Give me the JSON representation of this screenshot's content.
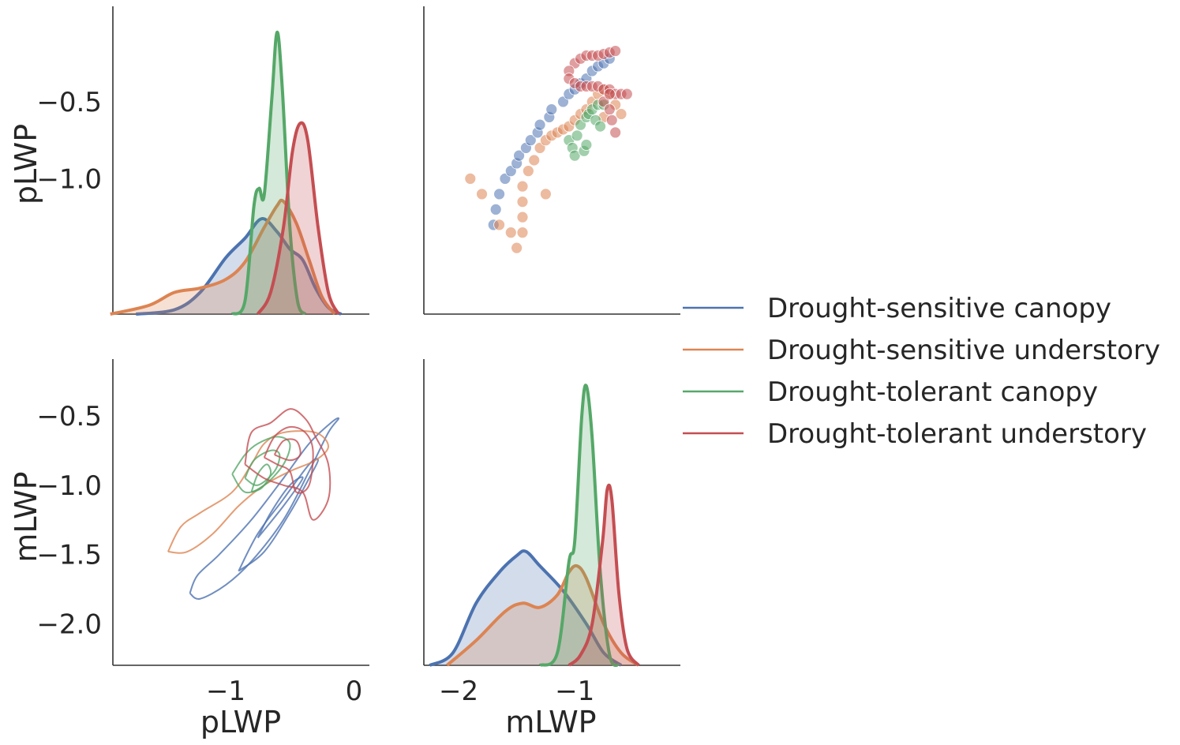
{
  "chart_data": {
    "type": "pairplot",
    "variables": [
      "pLWP",
      "mLWP"
    ],
    "axis_labels": {
      "row0_ylabel": "pLWP",
      "row1_ylabel": "mLWP",
      "col0_xlabel": "pLWP",
      "col1_xlabel": "mLWP"
    },
    "limits": {
      "pLWP": [
        -1.88,
        0.12
      ],
      "mLWP": [
        -2.3,
        -0.09
      ]
    },
    "ticks": {
      "pLWP_y": [
        {
          "v": -0.5,
          "t": "−0.5"
        },
        {
          "v": -1.0,
          "t": "−1.0"
        }
      ],
      "mLWP_y": [
        {
          "v": -0.5,
          "t": "−0.5"
        },
        {
          "v": -1.0,
          "t": "−1.0"
        },
        {
          "v": -1.5,
          "t": "−1.5"
        },
        {
          "v": -2.0,
          "t": "−2.0"
        }
      ],
      "pLWP_x": [
        {
          "v": -1,
          "t": "−1"
        },
        {
          "v": 0,
          "t": "0"
        }
      ],
      "mLWP_x": [
        {
          "v": -2,
          "t": "−2"
        },
        {
          "v": -1,
          "t": "−1"
        }
      ]
    },
    "legend_placement": "center-right",
    "series": [
      {
        "name": "Drought-sensitive canopy",
        "color": "#4c72b0",
        "pLWP_kde": [
          [
            -1.7,
            0.0
          ],
          [
            -1.4,
            0.02
          ],
          [
            -1.2,
            0.1
          ],
          [
            -1.0,
            0.26
          ],
          [
            -0.85,
            0.35
          ],
          [
            -0.72,
            0.44
          ],
          [
            -0.6,
            0.38
          ],
          [
            -0.5,
            0.3
          ],
          [
            -0.4,
            0.25
          ],
          [
            -0.3,
            0.12
          ],
          [
            -0.2,
            0.03
          ],
          [
            -0.1,
            0.0
          ]
        ],
        "mLWP_kde": [
          [
            -2.25,
            0.0
          ],
          [
            -2.05,
            0.06
          ],
          [
            -1.85,
            0.3
          ],
          [
            -1.65,
            0.45
          ],
          [
            -1.5,
            0.53
          ],
          [
            -1.42,
            0.55
          ],
          [
            -1.3,
            0.48
          ],
          [
            -1.1,
            0.36
          ],
          [
            -0.9,
            0.2
          ],
          [
            -0.75,
            0.06
          ],
          [
            -0.6,
            0.0
          ]
        ],
        "scatter": [
          [
            -1.7,
            -1.3
          ],
          [
            -1.68,
            -1.2
          ],
          [
            -1.65,
            -1.1
          ],
          [
            -1.6,
            -1.0
          ],
          [
            -1.55,
            -0.95
          ],
          [
            -1.5,
            -0.9
          ],
          [
            -1.48,
            -0.85
          ],
          [
            -1.42,
            -0.8
          ],
          [
            -1.38,
            -0.75
          ],
          [
            -1.32,
            -0.7
          ],
          [
            -1.3,
            -0.65
          ],
          [
            -1.22,
            -0.6
          ],
          [
            -1.2,
            -0.55
          ],
          [
            -1.1,
            -0.5
          ],
          [
            -1.05,
            -0.45
          ],
          [
            -1.0,
            -0.42
          ],
          [
            -0.95,
            -0.38
          ],
          [
            -0.9,
            -0.35
          ],
          [
            -0.85,
            -0.3
          ],
          [
            -0.8,
            -0.27
          ],
          [
            -0.75,
            -0.25
          ],
          [
            -0.7,
            -0.22
          ]
        ]
      },
      {
        "name": "Drought-sensitive understory",
        "color": "#dd8452",
        "pLWP_kde": [
          [
            -1.9,
            0.0
          ],
          [
            -1.6,
            0.04
          ],
          [
            -1.4,
            0.1
          ],
          [
            -1.2,
            0.12
          ],
          [
            -1.0,
            0.16
          ],
          [
            -0.85,
            0.24
          ],
          [
            -0.7,
            0.4
          ],
          [
            -0.6,
            0.5
          ],
          [
            -0.55,
            0.52
          ],
          [
            -0.45,
            0.42
          ],
          [
            -0.35,
            0.25
          ],
          [
            -0.25,
            0.08
          ],
          [
            -0.15,
            0.0
          ]
        ],
        "mLWP_kde": [
          [
            -2.1,
            0.0
          ],
          [
            -1.85,
            0.12
          ],
          [
            -1.6,
            0.26
          ],
          [
            -1.45,
            0.3
          ],
          [
            -1.3,
            0.28
          ],
          [
            -1.15,
            0.34
          ],
          [
            -1.05,
            0.45
          ],
          [
            -0.98,
            0.48
          ],
          [
            -0.9,
            0.42
          ],
          [
            -0.75,
            0.2
          ],
          [
            -0.6,
            0.06
          ],
          [
            -0.45,
            0.0
          ]
        ],
        "scatter": [
          [
            -1.9,
            -1.0
          ],
          [
            -1.8,
            -1.1
          ],
          [
            -1.65,
            -1.3
          ],
          [
            -1.55,
            -1.35
          ],
          [
            -1.5,
            -1.45
          ],
          [
            -1.45,
            -1.35
          ],
          [
            -1.45,
            -1.25
          ],
          [
            -1.45,
            -1.15
          ],
          [
            -1.45,
            -1.05
          ],
          [
            -1.4,
            -0.95
          ],
          [
            -1.35,
            -0.88
          ],
          [
            -1.3,
            -0.8
          ],
          [
            -1.25,
            -0.75
          ],
          [
            -1.2,
            -0.72
          ],
          [
            -1.15,
            -0.7
          ],
          [
            -1.1,
            -0.68
          ],
          [
            -1.05,
            -0.66
          ],
          [
            -1.0,
            -0.62
          ],
          [
            -0.95,
            -0.58
          ],
          [
            -0.9,
            -0.55
          ],
          [
            -0.85,
            -0.5
          ],
          [
            -0.8,
            -0.45
          ],
          [
            -0.75,
            -0.42
          ],
          [
            -0.7,
            -0.45
          ],
          [
            -0.65,
            -0.52
          ],
          [
            -0.6,
            -0.58
          ],
          [
            -1.25,
            -1.1
          ],
          [
            -0.75,
            -0.6
          ]
        ]
      },
      {
        "name": "Drought-tolerant canopy",
        "color": "#55a868",
        "pLWP_kde": [
          [
            -0.95,
            0.0
          ],
          [
            -0.85,
            0.06
          ],
          [
            -0.78,
            0.5
          ],
          [
            -0.74,
            0.58
          ],
          [
            -0.7,
            0.55
          ],
          [
            -0.64,
            1.0
          ],
          [
            -0.6,
            1.3
          ],
          [
            -0.56,
            1.05
          ],
          [
            -0.5,
            0.4
          ],
          [
            -0.44,
            0.06
          ],
          [
            -0.38,
            0.0
          ]
        ],
        "mLWP_kde": [
          [
            -1.3,
            0.0
          ],
          [
            -1.15,
            0.06
          ],
          [
            -1.05,
            0.5
          ],
          [
            -1.0,
            0.6
          ],
          [
            -0.94,
            1.2
          ],
          [
            -0.9,
            1.35
          ],
          [
            -0.85,
            1.1
          ],
          [
            -0.78,
            0.45
          ],
          [
            -0.7,
            0.05
          ],
          [
            -0.62,
            0.0
          ]
        ],
        "scatter": [
          [
            -1.05,
            -0.75
          ],
          [
            -1.02,
            -0.8
          ],
          [
            -1.0,
            -0.85
          ],
          [
            -0.98,
            -0.72
          ],
          [
            -0.95,
            -0.65
          ],
          [
            -0.9,
            -0.6
          ],
          [
            -0.88,
            -0.58
          ],
          [
            -0.85,
            -0.55
          ],
          [
            -0.8,
            -0.52
          ],
          [
            -0.75,
            -0.52
          ],
          [
            -0.82,
            -0.62
          ],
          [
            -0.78,
            -0.66
          ],
          [
            -0.92,
            -0.82
          ],
          [
            -0.9,
            -0.78
          ]
        ]
      },
      {
        "name": "Drought-tolerant understory",
        "color": "#c44e52",
        "pLWP_kde": [
          [
            -0.75,
            0.0
          ],
          [
            -0.65,
            0.1
          ],
          [
            -0.55,
            0.4
          ],
          [
            -0.48,
            0.75
          ],
          [
            -0.42,
            0.88
          ],
          [
            -0.36,
            0.8
          ],
          [
            -0.28,
            0.4
          ],
          [
            -0.2,
            0.1
          ],
          [
            -0.12,
            0.0
          ]
        ],
        "mLWP_kde": [
          [
            -1.05,
            0.0
          ],
          [
            -0.95,
            0.05
          ],
          [
            -0.85,
            0.2
          ],
          [
            -0.76,
            0.6
          ],
          [
            -0.72,
            0.85
          ],
          [
            -0.68,
            0.8
          ],
          [
            -0.62,
            0.35
          ],
          [
            -0.55,
            0.08
          ],
          [
            -0.45,
            0.0
          ]
        ],
        "scatter": [
          [
            -1.0,
            -0.25
          ],
          [
            -0.95,
            -0.22
          ],
          [
            -0.9,
            -0.2
          ],
          [
            -0.85,
            -0.2
          ],
          [
            -0.8,
            -0.2
          ],
          [
            -0.75,
            -0.19
          ],
          [
            -0.7,
            -0.18
          ],
          [
            -0.65,
            -0.17
          ],
          [
            -1.05,
            -0.3
          ],
          [
            -1.05,
            -0.35
          ],
          [
            -1.0,
            -0.38
          ],
          [
            -0.95,
            -0.4
          ],
          [
            -0.9,
            -0.4
          ],
          [
            -0.85,
            -0.4
          ],
          [
            -0.8,
            -0.4
          ],
          [
            -0.75,
            -0.42
          ],
          [
            -0.7,
            -0.42
          ],
          [
            -0.65,
            -0.45
          ],
          [
            -0.6,
            -0.45
          ],
          [
            -0.55,
            -0.45
          ],
          [
            -0.75,
            -0.5
          ],
          [
            -0.7,
            -0.55
          ],
          [
            -0.68,
            -0.62
          ],
          [
            -0.65,
            -0.7
          ],
          [
            -0.7,
            -0.45
          ]
        ]
      }
    ],
    "kde2d_contours": [
      {
        "series": 0,
        "paths": [
          [
            [
              -1.28,
              -1.78
            ],
            [
              -1.2,
              -1.82
            ],
            [
              -1.0,
              -1.72
            ],
            [
              -0.8,
              -1.55
            ],
            [
              -0.55,
              -1.25
            ],
            [
              -0.35,
              -0.9
            ],
            [
              -0.2,
              -0.62
            ],
            [
              -0.12,
              -0.52
            ],
            [
              -0.18,
              -0.55
            ],
            [
              -0.35,
              -0.7
            ],
            [
              -0.55,
              -0.95
            ],
            [
              -0.8,
              -1.25
            ],
            [
              -1.05,
              -1.5
            ],
            [
              -1.22,
              -1.65
            ],
            [
              -1.28,
              -1.78
            ]
          ],
          [
            [
              -0.9,
              -1.62
            ],
            [
              -0.7,
              -1.48
            ],
            [
              -0.5,
              -1.2
            ],
            [
              -0.35,
              -0.95
            ],
            [
              -0.28,
              -0.82
            ],
            [
              -0.35,
              -0.85
            ],
            [
              -0.55,
              -1.1
            ],
            [
              -0.75,
              -1.35
            ],
            [
              -0.9,
              -1.62
            ]
          ],
          [
            [
              -0.75,
              -1.38
            ],
            [
              -0.55,
              -1.15
            ],
            [
              -0.4,
              -0.95
            ],
            [
              -0.5,
              -1.0
            ],
            [
              -0.65,
              -1.2
            ],
            [
              -0.75,
              -1.38
            ]
          ]
        ]
      },
      {
        "series": 1,
        "paths": [
          [
            [
              -1.45,
              -1.48
            ],
            [
              -1.35,
              -1.3
            ],
            [
              -1.2,
              -1.2
            ],
            [
              -0.95,
              -1.05
            ],
            [
              -0.8,
              -0.85
            ],
            [
              -0.7,
              -0.7
            ],
            [
              -0.55,
              -0.62
            ],
            [
              -0.3,
              -0.62
            ],
            [
              -0.2,
              -0.72
            ],
            [
              -0.3,
              -0.82
            ],
            [
              -0.5,
              -0.9
            ],
            [
              -0.7,
              -1.0
            ],
            [
              -0.9,
              -1.15
            ],
            [
              -1.1,
              -1.35
            ],
            [
              -1.3,
              -1.48
            ],
            [
              -1.45,
              -1.48
            ]
          ]
        ]
      },
      {
        "series": 2,
        "paths": [
          [
            [
              -0.95,
              -0.92
            ],
            [
              -0.85,
              -0.78
            ],
            [
              -0.75,
              -0.7
            ],
            [
              -0.6,
              -0.65
            ],
            [
              -0.5,
              -0.7
            ],
            [
              -0.55,
              -0.85
            ],
            [
              -0.7,
              -1.0
            ],
            [
              -0.85,
              -1.05
            ],
            [
              -0.95,
              -0.92
            ]
          ],
          [
            [
              -0.85,
              -0.95
            ],
            [
              -0.78,
              -0.82
            ],
            [
              -0.65,
              -0.75
            ],
            [
              -0.58,
              -0.78
            ],
            [
              -0.62,
              -0.9
            ],
            [
              -0.75,
              -1.0
            ],
            [
              -0.85,
              -0.95
            ]
          ],
          [
            [
              -0.8,
              -1.05
            ],
            [
              -0.75,
              -0.92
            ],
            [
              -0.68,
              -0.85
            ],
            [
              -0.65,
              -0.92
            ],
            [
              -0.72,
              -1.02
            ],
            [
              -0.8,
              -1.05
            ]
          ]
        ]
      },
      {
        "series": 3,
        "paths": [
          [
            [
              -0.85,
              -0.85
            ],
            [
              -0.8,
              -0.62
            ],
            [
              -0.65,
              -0.55
            ],
            [
              -0.5,
              -0.45
            ],
            [
              -0.38,
              -0.52
            ],
            [
              -0.3,
              -0.65
            ],
            [
              -0.2,
              -0.85
            ],
            [
              -0.2,
              -1.1
            ],
            [
              -0.32,
              -1.25
            ],
            [
              -0.4,
              -1.05
            ],
            [
              -0.55,
              -1.0
            ],
            [
              -0.7,
              -0.95
            ],
            [
              -0.85,
              -0.85
            ]
          ],
          [
            [
              -0.7,
              -0.8
            ],
            [
              -0.62,
              -0.65
            ],
            [
              -0.5,
              -0.58
            ],
            [
              -0.38,
              -0.62
            ],
            [
              -0.32,
              -0.75
            ],
            [
              -0.35,
              -1.0
            ],
            [
              -0.45,
              -1.05
            ],
            [
              -0.5,
              -0.9
            ],
            [
              -0.6,
              -0.85
            ],
            [
              -0.7,
              -0.8
            ]
          ],
          [
            [
              -0.62,
              -0.78
            ],
            [
              -0.55,
              -0.68
            ],
            [
              -0.45,
              -0.68
            ],
            [
              -0.42,
              -0.78
            ],
            [
              -0.5,
              -0.82
            ],
            [
              -0.62,
              -0.78
            ]
          ]
        ]
      }
    ]
  }
}
